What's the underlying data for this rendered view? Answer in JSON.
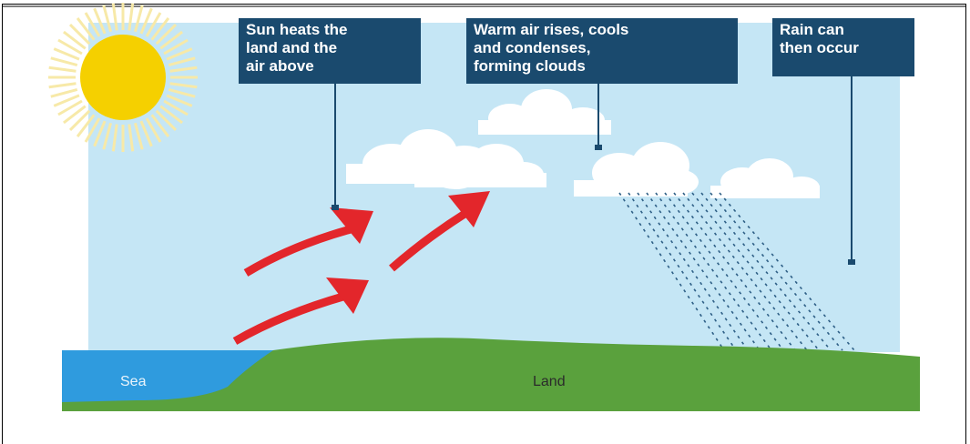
{
  "callouts": [
    {
      "lines": [
        "Sun heats the",
        "land and the",
        "air above"
      ]
    },
    {
      "lines": [
        "Warm air rises, cools",
        "and condenses,",
        "forming clouds"
      ]
    },
    {
      "lines": [
        "Rain can",
        "then occur"
      ]
    }
  ],
  "labels": {
    "sea": "Sea",
    "land": "Land"
  }
}
